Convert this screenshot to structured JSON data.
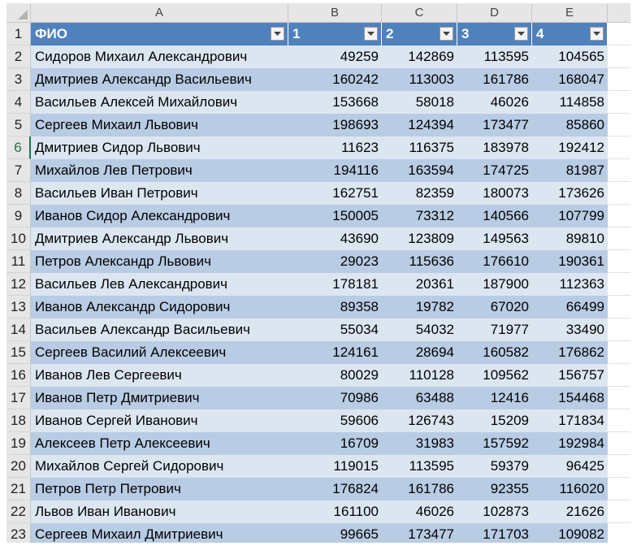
{
  "spreadsheet": {
    "columns": [
      "A",
      "B",
      "C",
      "D",
      "E",
      ""
    ],
    "header": [
      "ФИО",
      "1",
      "2",
      "3",
      "4"
    ],
    "selected_row": "6",
    "rows": [
      {
        "n": "2",
        "name": "Сидоров Михаил Александрович",
        "v": [
          "49259",
          "142869",
          "113595",
          "104565"
        ]
      },
      {
        "n": "3",
        "name": "Дмитриев Александр Васильевич",
        "v": [
          "160242",
          "113003",
          "161786",
          "168047"
        ]
      },
      {
        "n": "4",
        "name": "Васильев Алексей Михайлович",
        "v": [
          "153668",
          "58018",
          "46026",
          "114858"
        ]
      },
      {
        "n": "5",
        "name": "Сергеев Михаил Львович",
        "v": [
          "198693",
          "124394",
          "173477",
          "85860"
        ]
      },
      {
        "n": "6",
        "name": "Дмитриев Сидор Львович",
        "v": [
          "11623",
          "116375",
          "183978",
          "192412"
        ]
      },
      {
        "n": "7",
        "name": "Михайлов Лев Петрович",
        "v": [
          "194116",
          "163594",
          "174725",
          "81987"
        ]
      },
      {
        "n": "8",
        "name": "Васильев Иван Петрович",
        "v": [
          "162751",
          "82359",
          "180073",
          "173626"
        ]
      },
      {
        "n": "9",
        "name": "Иванов Сидор Александрович",
        "v": [
          "150005",
          "73312",
          "140566",
          "107799"
        ]
      },
      {
        "n": "10",
        "name": "Дмитриев Александр Львович",
        "v": [
          "43690",
          "123809",
          "149563",
          "89810"
        ]
      },
      {
        "n": "11",
        "name": "Петров Александр Львович",
        "v": [
          "29023",
          "115636",
          "176610",
          "190361"
        ]
      },
      {
        "n": "12",
        "name": "Васильев Лев Александрович",
        "v": [
          "178181",
          "20361",
          "187900",
          "112363"
        ]
      },
      {
        "n": "13",
        "name": "Иванов Александр Сидорович",
        "v": [
          "89358",
          "19782",
          "67020",
          "66499"
        ]
      },
      {
        "n": "14",
        "name": "Васильев Александр Васильевич",
        "v": [
          "55034",
          "54032",
          "71977",
          "33490"
        ]
      },
      {
        "n": "15",
        "name": "Сергеев Василий Алексеевич",
        "v": [
          "124161",
          "28694",
          "160582",
          "176862"
        ]
      },
      {
        "n": "16",
        "name": "Иванов Лев Сергеевич",
        "v": [
          "80029",
          "110128",
          "109562",
          "156757"
        ]
      },
      {
        "n": "17",
        "name": "Иванов Петр Дмитриевич",
        "v": [
          "70986",
          "63488",
          "12416",
          "154468"
        ]
      },
      {
        "n": "18",
        "name": "Иванов Сергей Иванович",
        "v": [
          "59606",
          "126743",
          "15209",
          "171834"
        ]
      },
      {
        "n": "19",
        "name": "Алексеев Петр Алексеевич",
        "v": [
          "16709",
          "31983",
          "157592",
          "192984"
        ]
      },
      {
        "n": "20",
        "name": "Михайлов Сергей Сидорович",
        "v": [
          "119015",
          "113595",
          "59379",
          "96425"
        ]
      },
      {
        "n": "21",
        "name": "Петров Петр Петрович",
        "v": [
          "176824",
          "161786",
          "92355",
          "116020"
        ]
      },
      {
        "n": "22",
        "name": "Львов Иван Иванович",
        "v": [
          "161100",
          "46026",
          "102873",
          "21626"
        ]
      },
      {
        "n": "23",
        "name": "Сергеев Михаил Дмитриевич",
        "v": [
          "99665",
          "173477",
          "171703",
          "109082"
        ]
      }
    ],
    "colors": {
      "header_fill": "#4f81bd",
      "band_dark": "#b8cce4",
      "band_light": "#dce6f1",
      "selection": "#217346"
    },
    "icons": [
      "filter-dropdown-icon",
      "select-all-icon"
    ]
  }
}
